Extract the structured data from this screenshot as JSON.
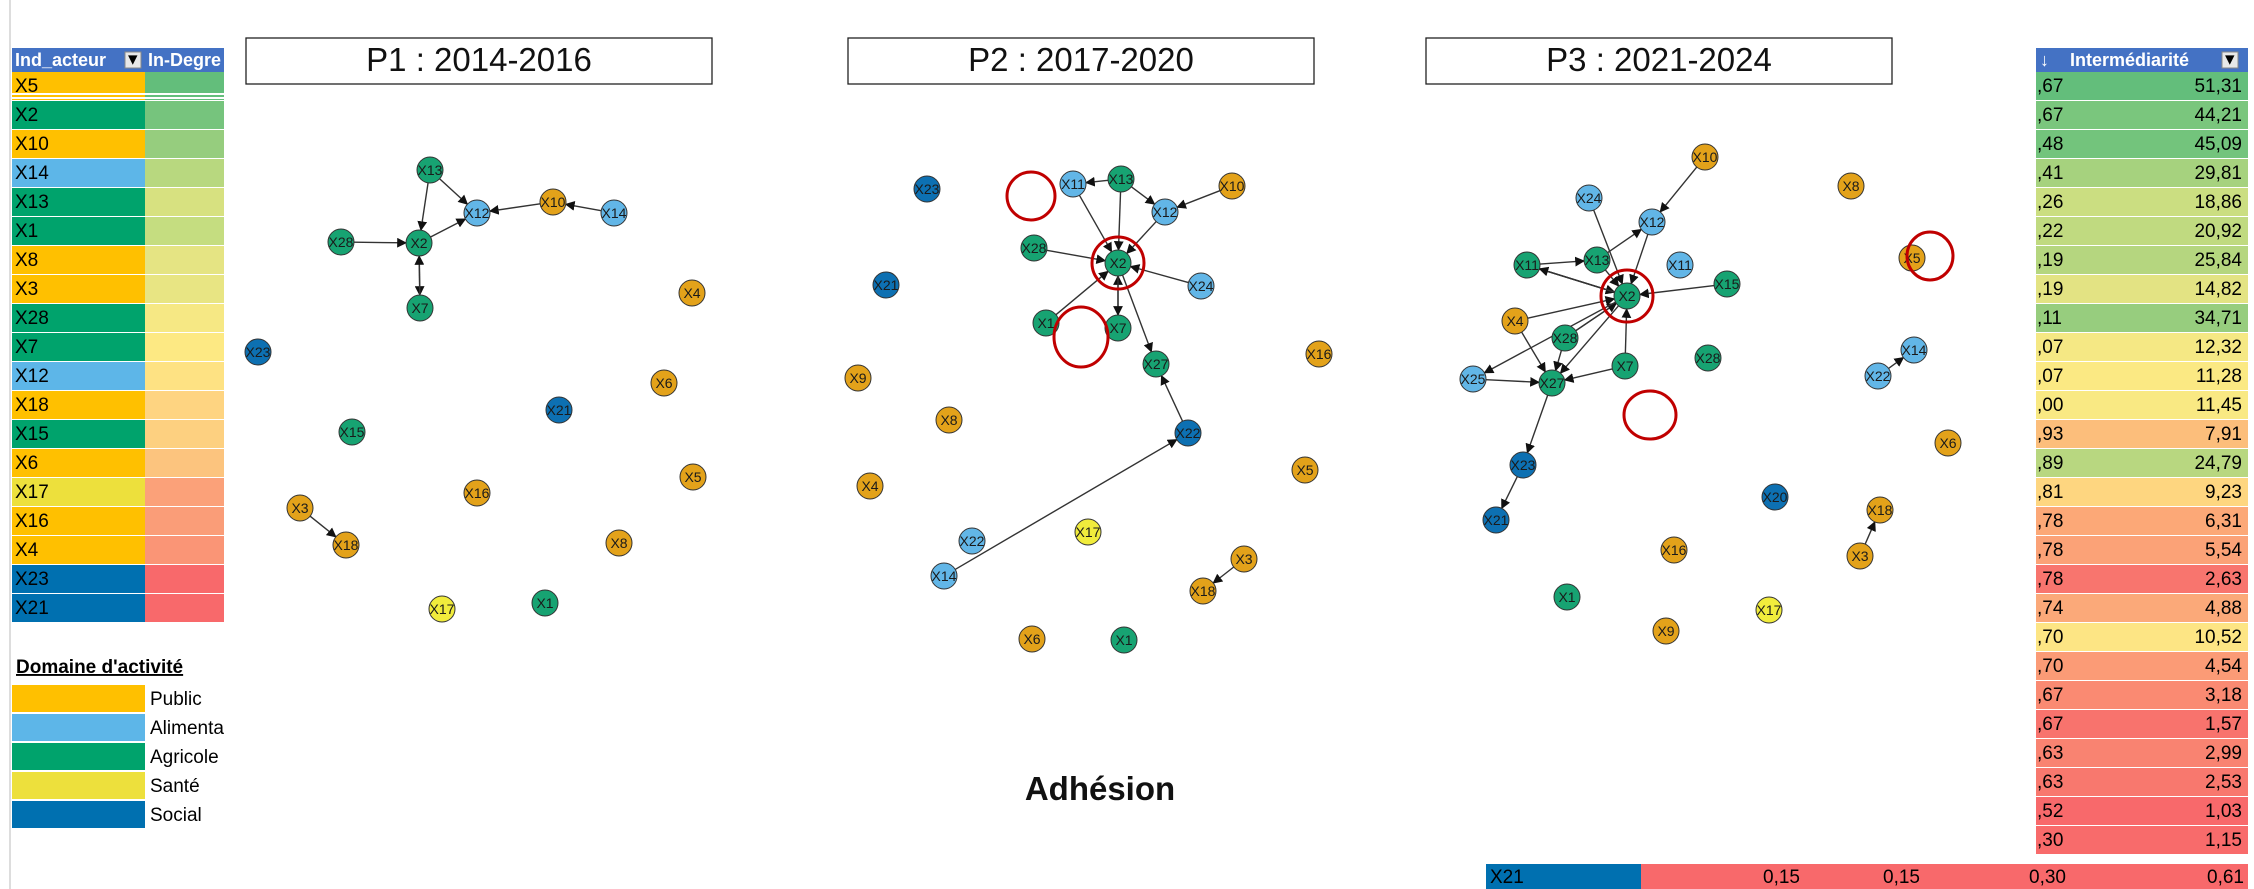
{
  "left_table": {
    "header": {
      "col1": "Ind_acteur",
      "col2": "In-Degre"
    },
    "rows": [
      {
        "id": "X5",
        "domain": "Public"
      },
      {
        "id": "X2",
        "domain": "Agricole"
      },
      {
        "id": "X10",
        "domain": "Public"
      },
      {
        "id": "X14",
        "domain": "Alimenta"
      },
      {
        "id": "X13",
        "domain": "Agricole"
      },
      {
        "id": "X1",
        "domain": "Agricole"
      },
      {
        "id": "X8",
        "domain": "Public"
      },
      {
        "id": "X3",
        "domain": "Public"
      },
      {
        "id": "X28",
        "domain": "Agricole"
      },
      {
        "id": "X7",
        "domain": "Agricole"
      },
      {
        "id": "X12",
        "domain": "Alimenta"
      },
      {
        "id": "X18",
        "domain": "Public"
      },
      {
        "id": "X15",
        "domain": "Agricole"
      },
      {
        "id": "X6",
        "domain": "Public"
      },
      {
        "id": "X17",
        "domain": "Santé"
      },
      {
        "id": "X16",
        "domain": "Public"
      },
      {
        "id": "X4",
        "domain": "Public"
      },
      {
        "id": "X23",
        "domain": "Social"
      },
      {
        "id": "X21",
        "domain": "Social"
      }
    ],
    "indegree_colors": [
      "#63be7b",
      "#76c47d",
      "#96cd7e",
      "#b8d87f",
      "#d7e180",
      "#c5dd80",
      "#e5e483",
      "#e8e583",
      "#f6e884",
      "#fde983",
      "#fee283",
      "#fed481",
      "#fdd080",
      "#fcc47e",
      "#fba179",
      "#fa9d78",
      "#fa9576",
      "#f8696b",
      "#f8696b"
    ]
  },
  "legend": {
    "title": "Domaine d'activité",
    "items": [
      {
        "label": "Public",
        "color": "#ffc000"
      },
      {
        "label": "Alimenta",
        "color": "#5db6e8"
      },
      {
        "label": "Agricole",
        "color": "#00a36c"
      },
      {
        "label": "Santé",
        "color": "#ede03c"
      },
      {
        "label": "Social",
        "color": "#0070b0"
      }
    ]
  },
  "domain_colors": {
    "Public": "#ffc000",
    "Alimenta": "#5db6e8",
    "Agricole": "#00a36c",
    "Santé": "#ede03c",
    "Social": "#0070b0"
  },
  "node_colors": {
    "Public": "#e3a21a",
    "Alimenta": "#62b6e7",
    "Agricole": "#17a372",
    "Santé": "#f1ec3c",
    "Social": "#0d70b2"
  },
  "panels": [
    {
      "title": "P1 : 2014-2016",
      "nodes": [
        {
          "id": "X13",
          "d": "Agricole"
        },
        {
          "id": "X12",
          "d": "Alimenta"
        },
        {
          "id": "X10",
          "d": "Public"
        },
        {
          "id": "X14",
          "d": "Alimenta"
        },
        {
          "id": "X28",
          "d": "Agricole"
        },
        {
          "id": "X2",
          "d": "Agricole"
        },
        {
          "id": "X7",
          "d": "Agricole"
        },
        {
          "id": "X4",
          "d": "Public"
        },
        {
          "id": "X23",
          "d": "Social"
        },
        {
          "id": "X6",
          "d": "Public"
        },
        {
          "id": "X15",
          "d": "Agricole"
        },
        {
          "id": "X21",
          "d": "Social"
        },
        {
          "id": "X16",
          "d": "Public"
        },
        {
          "id": "X5",
          "d": "Public"
        },
        {
          "id": "X3",
          "d": "Public"
        },
        {
          "id": "X18",
          "d": "Public"
        },
        {
          "id": "X8",
          "d": "Public"
        },
        {
          "id": "X17",
          "d": "Santé"
        },
        {
          "id": "X1",
          "d": "Agricole"
        }
      ],
      "edges": [
        [
          "X13",
          "X12"
        ],
        [
          "X13",
          "X2"
        ],
        [
          "X28",
          "X2"
        ],
        [
          "X2",
          "X12"
        ],
        [
          "X10",
          "X12"
        ],
        [
          "X14",
          "X10"
        ],
        [
          "X2",
          "X7"
        ],
        [
          "X7",
          "X2"
        ],
        [
          "X3",
          "X18"
        ]
      ],
      "highlights": []
    },
    {
      "title": "P2 : 2017-2020",
      "nodes": [
        {
          "id": "X23",
          "d": "Social"
        },
        {
          "id": "X11",
          "d": "Alimenta"
        },
        {
          "id": "X13",
          "d": "Agricole"
        },
        {
          "id": "X12",
          "d": "Alimenta"
        },
        {
          "id": "X10",
          "d": "Public"
        },
        {
          "id": "X28",
          "d": "Agricole"
        },
        {
          "id": "X2",
          "d": "Agricole"
        },
        {
          "id": "X21",
          "d": "Social"
        },
        {
          "id": "X24",
          "d": "Alimenta"
        },
        {
          "id": "X1",
          "d": "Agricole"
        },
        {
          "id": "X7",
          "d": "Agricole"
        },
        {
          "id": "X16",
          "d": "Public"
        },
        {
          "id": "X27",
          "d": "Agricole"
        },
        {
          "id": "X9",
          "d": "Public"
        },
        {
          "id": "X8",
          "d": "Public"
        },
        {
          "id": "X22",
          "d": "Social"
        },
        {
          "id": "X5",
          "d": "Public"
        },
        {
          "id": "X4",
          "d": "Public"
        },
        {
          "id": "X22",
          "d": "Alimenta"
        },
        {
          "id": "X17",
          "d": "Santé"
        },
        {
          "id": "X14",
          "d": "Alimenta"
        },
        {
          "id": "X3",
          "d": "Public"
        },
        {
          "id": "X18",
          "d": "Public"
        },
        {
          "id": "X6",
          "d": "Public"
        },
        {
          "id": "X1",
          "d": "Agricole"
        }
      ],
      "edges": [
        [
          "X11",
          "X2"
        ],
        [
          "X13",
          "X11"
        ],
        [
          "X13",
          "X2"
        ],
        [
          "X12",
          "X2"
        ],
        [
          "X10",
          "X12"
        ],
        [
          "X28",
          "X2"
        ],
        [
          "X24",
          "X2"
        ],
        [
          "X1",
          "X2"
        ],
        [
          "X7",
          "X2"
        ],
        [
          "X2",
          "X27"
        ],
        [
          "X2",
          "X7"
        ],
        [
          "X22",
          "X27"
        ],
        [
          "X14",
          "X22"
        ],
        [
          "X3",
          "X18"
        ],
        [
          "X13",
          "X12"
        ]
      ],
      "highlights": [
        "X2"
      ]
    },
    {
      "title": "P3 : 2021-2024",
      "nodes": [
        {
          "id": "X10",
          "d": "Public"
        },
        {
          "id": "X8",
          "d": "Public"
        },
        {
          "id": "X24",
          "d": "Alimenta"
        },
        {
          "id": "X12",
          "d": "Alimenta"
        },
        {
          "id": "X5",
          "d": "Public"
        },
        {
          "id": "X11",
          "d": "Agricole"
        },
        {
          "id": "X13",
          "d": "Agricole"
        },
        {
          "id": "X11",
          "d": "Alimenta"
        },
        {
          "id": "X15",
          "d": "Agricole"
        },
        {
          "id": "X2",
          "d": "Agricole"
        },
        {
          "id": "X4",
          "d": "Public"
        },
        {
          "id": "X28",
          "d": "Agricole"
        },
        {
          "id": "X28",
          "d": "Agricole"
        },
        {
          "id": "X25",
          "d": "Alimenta"
        },
        {
          "id": "X27",
          "d": "Agricole"
        },
        {
          "id": "X7",
          "d": "Agricole"
        },
        {
          "id": "X14",
          "d": "Alimenta"
        },
        {
          "id": "X22",
          "d": "Alimenta"
        },
        {
          "id": "X6",
          "d": "Public"
        },
        {
          "id": "X23",
          "d": "Social"
        },
        {
          "id": "X21",
          "d": "Social"
        },
        {
          "id": "X20",
          "d": "Social"
        },
        {
          "id": "X18",
          "d": "Public"
        },
        {
          "id": "X16",
          "d": "Public"
        },
        {
          "id": "X3",
          "d": "Public"
        },
        {
          "id": "X1",
          "d": "Agricole"
        },
        {
          "id": "X17",
          "d": "Santé"
        },
        {
          "id": "X9",
          "d": "Public"
        }
      ],
      "edges": [
        [
          "X10",
          "X12"
        ],
        [
          "X24",
          "X2"
        ],
        [
          "X12",
          "X2"
        ],
        [
          "X11",
          "X2"
        ],
        [
          "X13",
          "X2"
        ],
        [
          "X11",
          "X2"
        ],
        [
          "X15",
          "X2"
        ],
        [
          "X4",
          "X2"
        ],
        [
          "X28",
          "X2"
        ],
        [
          "X28",
          "X2"
        ],
        [
          "X7",
          "X2"
        ],
        [
          "X2",
          "X11"
        ],
        [
          "X2",
          "X27"
        ],
        [
          "X4",
          "X27"
        ],
        [
          "X28",
          "X27"
        ],
        [
          "X7",
          "X27"
        ],
        [
          "X25",
          "X27"
        ],
        [
          "X2",
          "X25"
        ],
        [
          "X27",
          "X23"
        ],
        [
          "X23",
          "X21"
        ],
        [
          "X22",
          "X14"
        ],
        [
          "X3",
          "X18"
        ],
        [
          "X13",
          "X12"
        ],
        [
          "X11",
          "X13"
        ]
      ],
      "highlights": [
        "X2"
      ]
    }
  ],
  "center_label": "Adhésion",
  "right_table": {
    "header": "Intermédiarité",
    "rows": [
      {
        "a": ",67",
        "b": "51,31"
      },
      {
        "a": ",67",
        "b": "44,21"
      },
      {
        "a": ",48",
        "b": "45,09"
      },
      {
        "a": ",41",
        "b": "29,81"
      },
      {
        "a": ",26",
        "b": "18,86"
      },
      {
        "a": ",22",
        "b": "20,92"
      },
      {
        "a": ",19",
        "b": "25,84"
      },
      {
        "a": ",19",
        "b": "14,82"
      },
      {
        "a": ",11",
        "b": "34,71"
      },
      {
        "a": ",07",
        "b": "12,32"
      },
      {
        "a": ",07",
        "b": "11,28"
      },
      {
        "a": ",00",
        "b": "11,45"
      },
      {
        "a": ",93",
        "b": "7,91"
      },
      {
        "a": ",89",
        "b": "24,79"
      },
      {
        "a": ",81",
        "b": "9,23"
      },
      {
        "a": ",78",
        "b": "6,31"
      },
      {
        "a": ",78",
        "b": "5,54"
      },
      {
        "a": ",78",
        "b": "2,63"
      },
      {
        "a": ",74",
        "b": "4,88"
      },
      {
        "a": ",70",
        "b": "10,52"
      },
      {
        "a": ",70",
        "b": "4,54"
      },
      {
        "a": ",67",
        "b": "3,18"
      },
      {
        "a": ",67",
        "b": "1,57"
      },
      {
        "a": ",63",
        "b": "2,99"
      },
      {
        "a": ",63",
        "b": "2,53"
      },
      {
        "a": ",52",
        "b": "1,03"
      },
      {
        "a": ",30",
        "b": "1,15"
      }
    ],
    "colors": [
      "#63be7b",
      "#7ac67d",
      "#73c47c",
      "#a6d27e",
      "#cbde81",
      "#c0da80",
      "#b5d67f",
      "#e3e383",
      "#97cd7e",
      "#f5e884",
      "#fbe983",
      "#f9e983",
      "#fcbe7b",
      "#b8d780",
      "#fed680",
      "#fca877",
      "#fba277",
      "#f8756e",
      "#fba979",
      "#fde584",
      "#fb9b76",
      "#fa8a72",
      "#f8736d",
      "#f98371",
      "#f8786e",
      "#f8696b",
      "#f86b6b"
    ],
    "footer": {
      "id": "X21",
      "v1": "0,15",
      "v2": "0,15",
      "v3": "0,30",
      "v4": "0,61"
    }
  }
}
